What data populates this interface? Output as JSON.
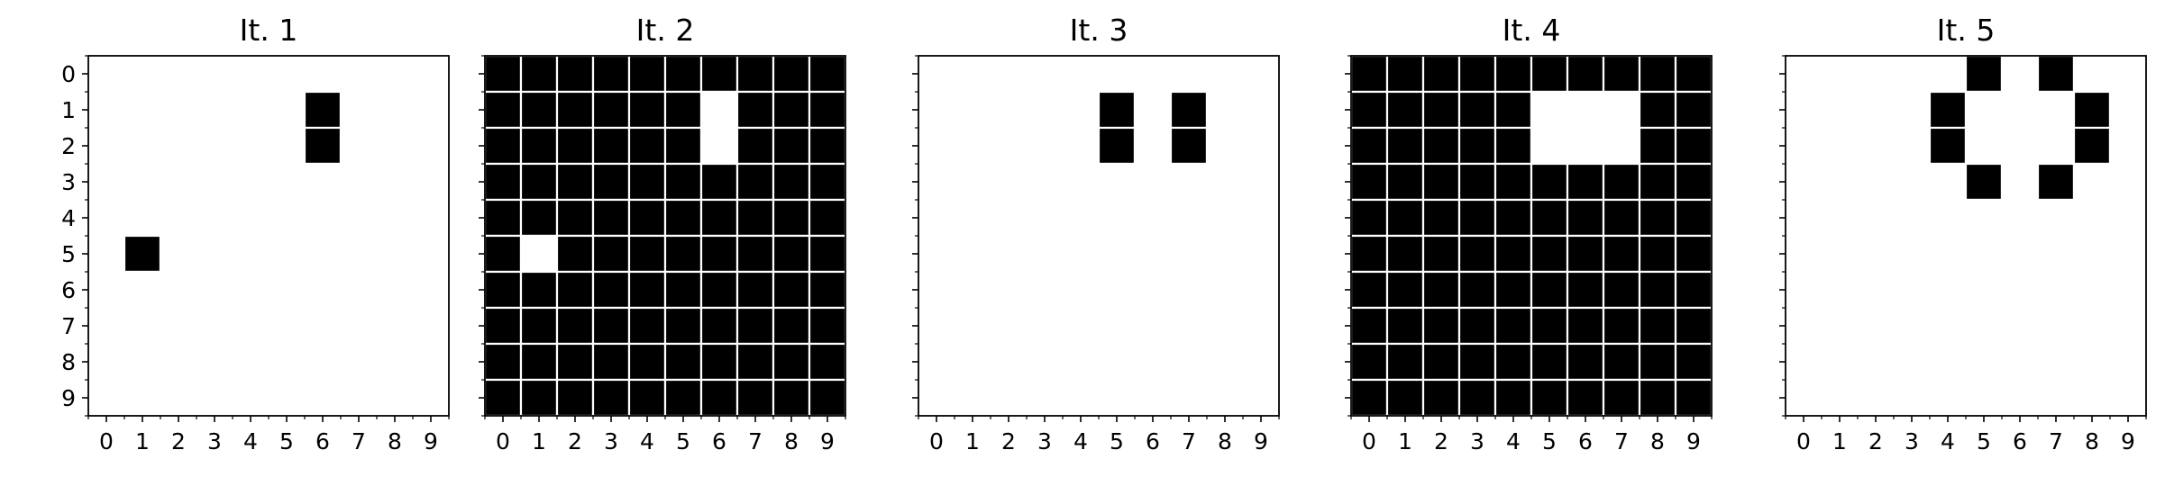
{
  "chart_data": [
    {
      "type": "heatmap",
      "title": "It. 1",
      "xlabel": "",
      "ylabel": "",
      "x": [
        0,
        1,
        2,
        3,
        4,
        5,
        6,
        7,
        8,
        9
      ],
      "y": [
        0,
        1,
        2,
        3,
        4,
        5,
        6,
        7,
        8,
        9
      ],
      "xlim": [
        -0.5,
        9.5
      ],
      "ylim": [
        9.5,
        -0.5
      ],
      "colormap": {
        "0": "#ffffff",
        "1": "#000000"
      },
      "grid": false,
      "values": [
        [
          0,
          0,
          0,
          0,
          0,
          0,
          0,
          0,
          0,
          0
        ],
        [
          0,
          0,
          0,
          0,
          0,
          0,
          1,
          0,
          0,
          0
        ],
        [
          0,
          0,
          0,
          0,
          0,
          0,
          1,
          0,
          0,
          0
        ],
        [
          0,
          0,
          0,
          0,
          0,
          0,
          0,
          0,
          0,
          0
        ],
        [
          0,
          0,
          0,
          0,
          0,
          0,
          0,
          0,
          0,
          0
        ],
        [
          0,
          1,
          0,
          0,
          0,
          0,
          0,
          0,
          0,
          0
        ],
        [
          0,
          0,
          0,
          0,
          0,
          0,
          0,
          0,
          0,
          0
        ],
        [
          0,
          0,
          0,
          0,
          0,
          0,
          0,
          0,
          0,
          0
        ],
        [
          0,
          0,
          0,
          0,
          0,
          0,
          0,
          0,
          0,
          0
        ],
        [
          0,
          0,
          0,
          0,
          0,
          0,
          0,
          0,
          0,
          0
        ]
      ]
    },
    {
      "type": "heatmap",
      "title": "It. 2",
      "xlabel": "",
      "ylabel": "",
      "x": [
        0,
        1,
        2,
        3,
        4,
        5,
        6,
        7,
        8,
        9
      ],
      "y": [],
      "xlim": [
        -0.5,
        9.5
      ],
      "ylim": [
        9.5,
        -0.5
      ],
      "colormap": {
        "0": "#ffffff",
        "1": "#000000"
      },
      "grid": false,
      "values": [
        [
          1,
          1,
          1,
          1,
          1,
          1,
          1,
          1,
          1,
          1
        ],
        [
          1,
          1,
          1,
          1,
          1,
          1,
          0,
          1,
          1,
          1
        ],
        [
          1,
          1,
          1,
          1,
          1,
          1,
          0,
          1,
          1,
          1
        ],
        [
          1,
          1,
          1,
          1,
          1,
          1,
          1,
          1,
          1,
          1
        ],
        [
          1,
          1,
          1,
          1,
          1,
          1,
          1,
          1,
          1,
          1
        ],
        [
          1,
          0,
          1,
          1,
          1,
          1,
          1,
          1,
          1,
          1
        ],
        [
          1,
          1,
          1,
          1,
          1,
          1,
          1,
          1,
          1,
          1
        ],
        [
          1,
          1,
          1,
          1,
          1,
          1,
          1,
          1,
          1,
          1
        ],
        [
          1,
          1,
          1,
          1,
          1,
          1,
          1,
          1,
          1,
          1
        ],
        [
          1,
          1,
          1,
          1,
          1,
          1,
          1,
          1,
          1,
          1
        ]
      ]
    },
    {
      "type": "heatmap",
      "title": "It. 3",
      "xlabel": "",
      "ylabel": "",
      "x": [
        0,
        1,
        2,
        3,
        4,
        5,
        6,
        7,
        8,
        9
      ],
      "y": [],
      "xlim": [
        -0.5,
        9.5
      ],
      "ylim": [
        9.5,
        -0.5
      ],
      "colormap": {
        "0": "#ffffff",
        "1": "#000000"
      },
      "grid": false,
      "values": [
        [
          0,
          0,
          0,
          0,
          0,
          0,
          0,
          0,
          0,
          0
        ],
        [
          0,
          0,
          0,
          0,
          0,
          1,
          0,
          1,
          0,
          0
        ],
        [
          0,
          0,
          0,
          0,
          0,
          1,
          0,
          1,
          0,
          0
        ],
        [
          0,
          0,
          0,
          0,
          0,
          0,
          0,
          0,
          0,
          0
        ],
        [
          0,
          0,
          0,
          0,
          0,
          0,
          0,
          0,
          0,
          0
        ],
        [
          0,
          0,
          0,
          0,
          0,
          0,
          0,
          0,
          0,
          0
        ],
        [
          0,
          0,
          0,
          0,
          0,
          0,
          0,
          0,
          0,
          0
        ],
        [
          0,
          0,
          0,
          0,
          0,
          0,
          0,
          0,
          0,
          0
        ],
        [
          0,
          0,
          0,
          0,
          0,
          0,
          0,
          0,
          0,
          0
        ],
        [
          0,
          0,
          0,
          0,
          0,
          0,
          0,
          0,
          0,
          0
        ]
      ]
    },
    {
      "type": "heatmap",
      "title": "It. 4",
      "xlabel": "",
      "ylabel": "",
      "x": [
        0,
        1,
        2,
        3,
        4,
        5,
        6,
        7,
        8,
        9
      ],
      "y": [],
      "xlim": [
        -0.5,
        9.5
      ],
      "ylim": [
        9.5,
        -0.5
      ],
      "colormap": {
        "0": "#ffffff",
        "1": "#000000"
      },
      "grid": false,
      "values": [
        [
          1,
          1,
          1,
          1,
          1,
          1,
          1,
          1,
          1,
          1
        ],
        [
          1,
          1,
          1,
          1,
          1,
          0,
          0,
          0,
          1,
          1
        ],
        [
          1,
          1,
          1,
          1,
          1,
          0,
          0,
          0,
          1,
          1
        ],
        [
          1,
          1,
          1,
          1,
          1,
          1,
          1,
          1,
          1,
          1
        ],
        [
          1,
          1,
          1,
          1,
          1,
          1,
          1,
          1,
          1,
          1
        ],
        [
          1,
          1,
          1,
          1,
          1,
          1,
          1,
          1,
          1,
          1
        ],
        [
          1,
          1,
          1,
          1,
          1,
          1,
          1,
          1,
          1,
          1
        ],
        [
          1,
          1,
          1,
          1,
          1,
          1,
          1,
          1,
          1,
          1
        ],
        [
          1,
          1,
          1,
          1,
          1,
          1,
          1,
          1,
          1,
          1
        ],
        [
          1,
          1,
          1,
          1,
          1,
          1,
          1,
          1,
          1,
          1
        ]
      ]
    },
    {
      "type": "heatmap",
      "title": "It. 5",
      "xlabel": "",
      "ylabel": "",
      "x": [
        0,
        1,
        2,
        3,
        4,
        5,
        6,
        7,
        8,
        9
      ],
      "y": [],
      "xlim": [
        -0.5,
        9.5
      ],
      "ylim": [
        9.5,
        -0.5
      ],
      "colormap": {
        "0": "#ffffff",
        "1": "#000000"
      },
      "grid": false,
      "values": [
        [
          0,
          0,
          0,
          0,
          0,
          1,
          0,
          1,
          0,
          0
        ],
        [
          0,
          0,
          0,
          0,
          1,
          0,
          0,
          0,
          1,
          0
        ],
        [
          0,
          0,
          0,
          0,
          1,
          0,
          0,
          0,
          1,
          0
        ],
        [
          0,
          0,
          0,
          0,
          0,
          1,
          0,
          1,
          0,
          0
        ],
        [
          0,
          0,
          0,
          0,
          0,
          0,
          0,
          0,
          0,
          0
        ],
        [
          0,
          0,
          0,
          0,
          0,
          0,
          0,
          0,
          0,
          0
        ],
        [
          0,
          0,
          0,
          0,
          0,
          0,
          0,
          0,
          0,
          0
        ],
        [
          0,
          0,
          0,
          0,
          0,
          0,
          0,
          0,
          0,
          0
        ],
        [
          0,
          0,
          0,
          0,
          0,
          0,
          0,
          0,
          0,
          0
        ],
        [
          0,
          0,
          0,
          0,
          0,
          0,
          0,
          0,
          0,
          0
        ]
      ]
    }
  ]
}
